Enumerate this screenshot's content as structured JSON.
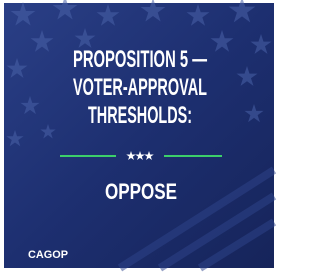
{
  "title": {
    "lines": [
      "PROPOSITION 5 —",
      "VOTER-APPROVAL",
      "THRESHOLDS:"
    ]
  },
  "stance": "OPPOSE",
  "logo": "CAGOP"
}
